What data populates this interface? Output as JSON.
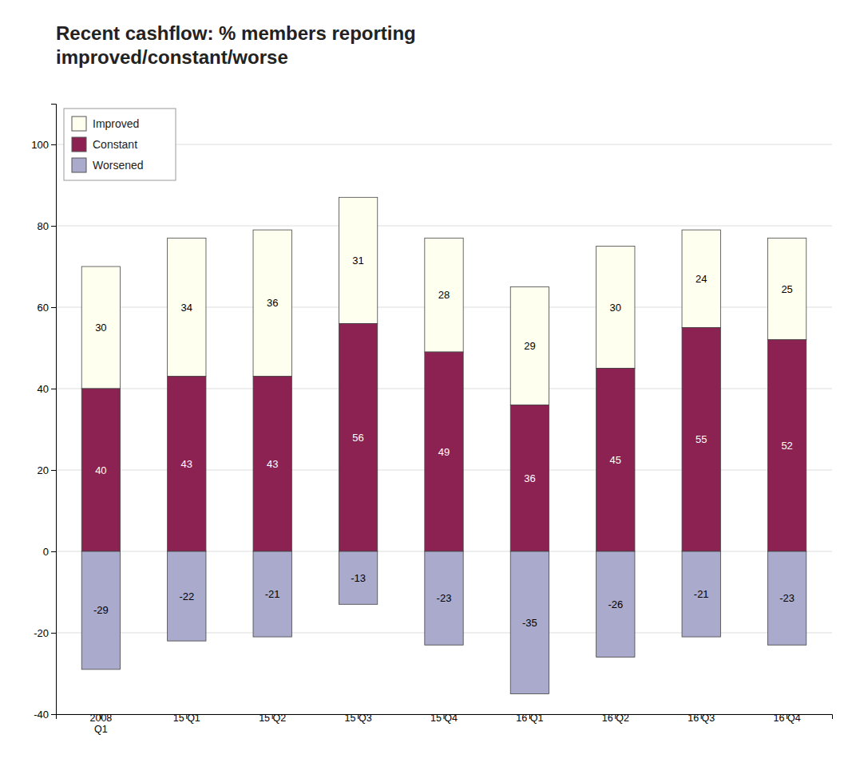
{
  "chart_data": {
    "type": "bar",
    "stacked": true,
    "title": "Recent cashflow: % members reporting\nimproved/constant/worse",
    "categories": [
      "2008\nQ1",
      "15 Q1",
      "15 Q2",
      "15 Q3",
      "15 Q4",
      "16 Q1",
      "16 Q2",
      "16 Q3",
      "16 Q4"
    ],
    "series": [
      {
        "name": "Improved",
        "color": "#FFFFF0",
        "values": [
          30,
          34,
          36,
          31,
          28,
          29,
          30,
          24,
          25
        ]
      },
      {
        "name": "Constant",
        "color": "#8B2252",
        "values": [
          40,
          43,
          43,
          56,
          49,
          36,
          45,
          55,
          52
        ]
      },
      {
        "name": "Worsened",
        "color": "#AAAACC",
        "values": [
          -29,
          -22,
          -21,
          -13,
          -23,
          -35,
          -26,
          -21,
          -23
        ]
      }
    ],
    "ylim": [
      -40,
      110
    ],
    "yticks": [
      -40,
      -20,
      0,
      20,
      40,
      60,
      80,
      100
    ],
    "grid": true,
    "legend": "upper left",
    "data_labels": true
  }
}
